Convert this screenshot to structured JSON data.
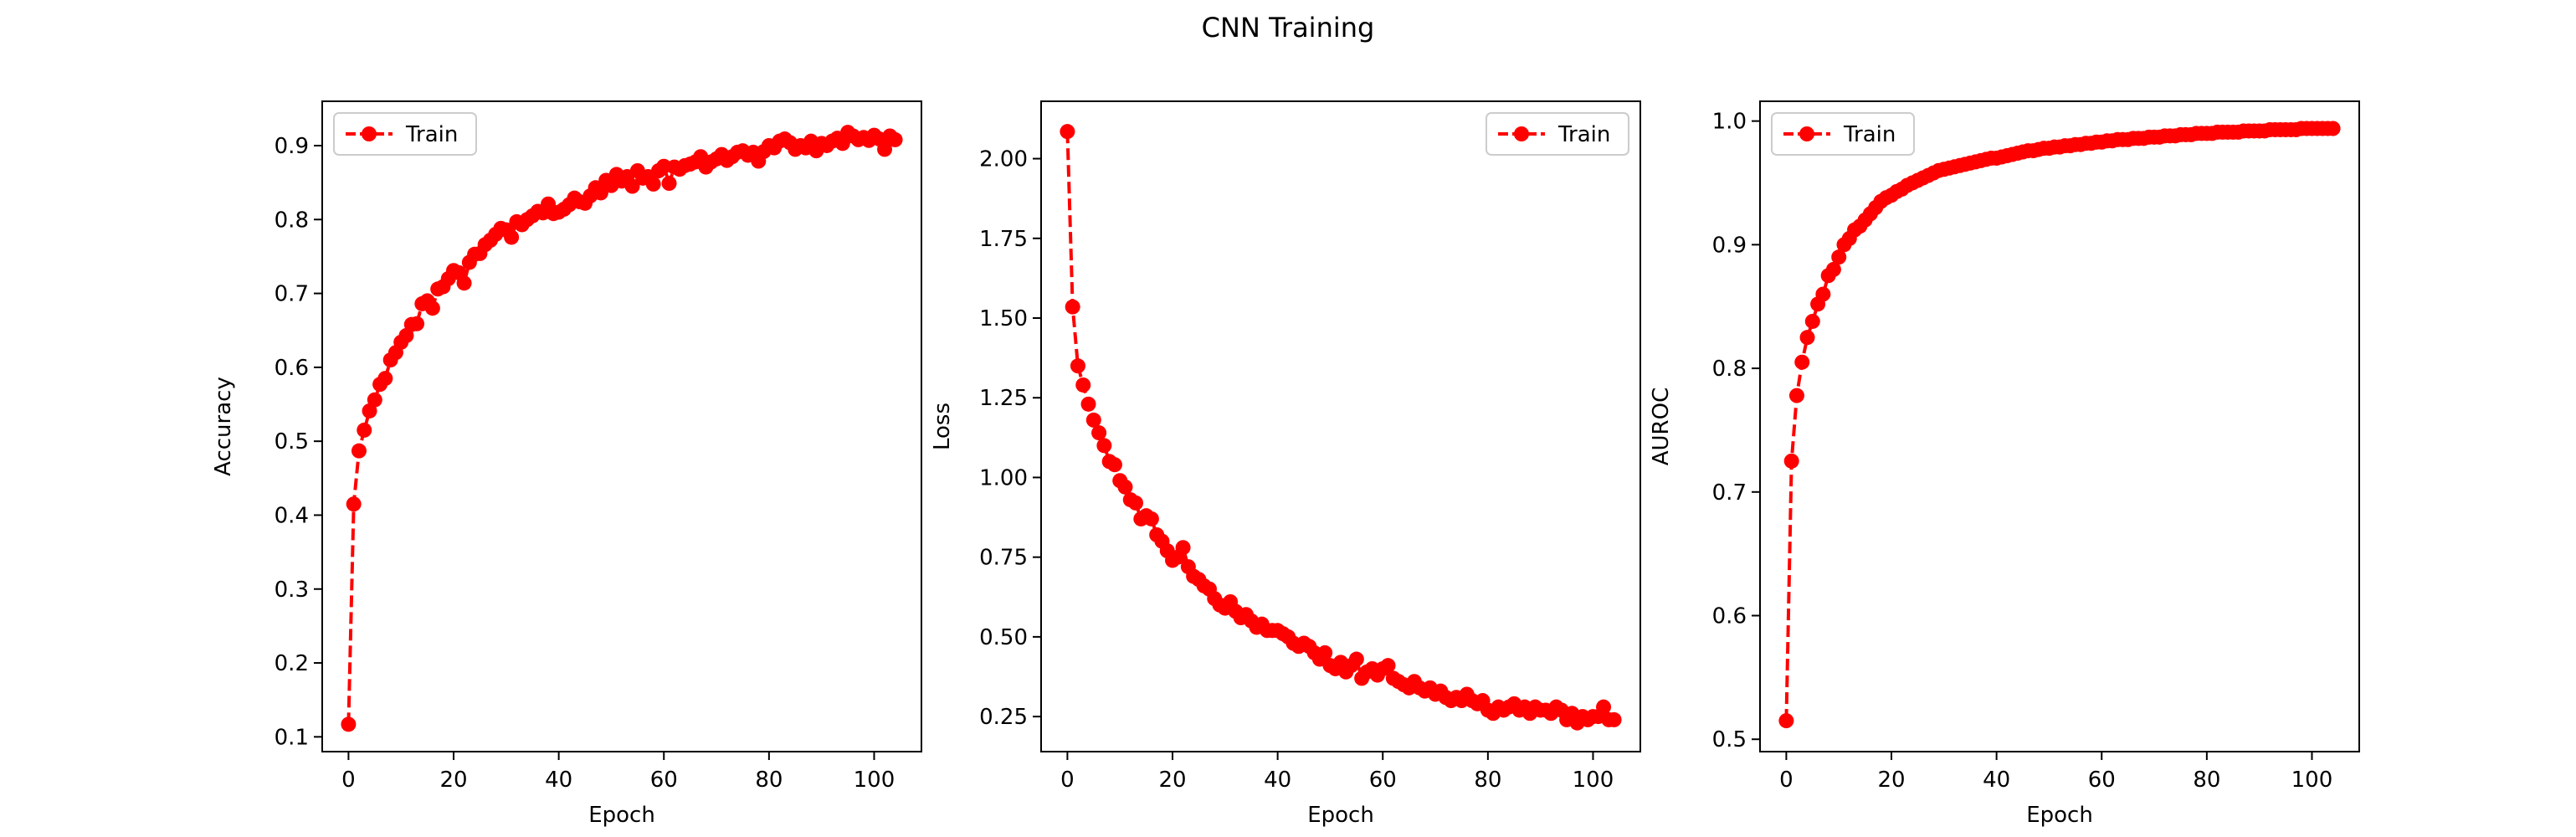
{
  "figure": {
    "title": "CNN Training",
    "background": "#ffffff",
    "series_color": "#ff0000"
  },
  "chart_data": [
    {
      "type": "line",
      "title": "",
      "xlabel": "Epoch",
      "ylabel": "Accuracy",
      "xlim": [
        -5,
        109
      ],
      "ylim": [
        0.08,
        0.96
      ],
      "xticks": [
        0,
        20,
        40,
        60,
        80,
        100
      ],
      "yticks": [
        0.1,
        0.2,
        0.3,
        0.4,
        0.5,
        0.6,
        0.7,
        0.8,
        0.9
      ],
      "grid": false,
      "legend_position": "top-left",
      "line_style": "dashed",
      "marker": "circle",
      "series": [
        {
          "name": "Train",
          "color": "#ff0000",
          "x": [
            0,
            1,
            2,
            3,
            4,
            5,
            6,
            7,
            8,
            9,
            10,
            11,
            12,
            13,
            14,
            15,
            16,
            17,
            18,
            19,
            20,
            21,
            22,
            23,
            24,
            25,
            26,
            27,
            28,
            29,
            30,
            31,
            32,
            33,
            34,
            35,
            36,
            37,
            38,
            39,
            40,
            41,
            42,
            43,
            44,
            45,
            46,
            47,
            48,
            49,
            50,
            51,
            52,
            53,
            54,
            55,
            56,
            57,
            58,
            59,
            60,
            61,
            62,
            63,
            64,
            65,
            66,
            67,
            68,
            69,
            70,
            71,
            72,
            73,
            74,
            75,
            76,
            77,
            78,
            79,
            80,
            81,
            82,
            83,
            84,
            85,
            86,
            87,
            88,
            89,
            90,
            91,
            92,
            93,
            94,
            95,
            96,
            97,
            98,
            99,
            100,
            101,
            102,
            103,
            104
          ],
          "values": [
            0.117,
            0.415,
            0.487,
            0.515,
            0.541,
            0.556,
            0.577,
            0.585,
            0.61,
            0.62,
            0.634,
            0.643,
            0.658,
            0.659,
            0.686,
            0.69,
            0.68,
            0.706,
            0.709,
            0.72,
            0.731,
            0.728,
            0.714,
            0.742,
            0.753,
            0.754,
            0.766,
            0.772,
            0.78,
            0.788,
            0.786,
            0.776,
            0.797,
            0.793,
            0.8,
            0.805,
            0.811,
            0.809,
            0.821,
            0.808,
            0.81,
            0.814,
            0.82,
            0.829,
            0.824,
            0.822,
            0.832,
            0.843,
            0.836,
            0.853,
            0.846,
            0.861,
            0.852,
            0.858,
            0.845,
            0.866,
            0.856,
            0.858,
            0.848,
            0.866,
            0.872,
            0.849,
            0.871,
            0.868,
            0.873,
            0.875,
            0.878,
            0.885,
            0.871,
            0.878,
            0.882,
            0.888,
            0.88,
            0.885,
            0.891,
            0.893,
            0.887,
            0.891,
            0.879,
            0.892,
            0.9,
            0.897,
            0.906,
            0.909,
            0.904,
            0.895,
            0.9,
            0.897,
            0.906,
            0.893,
            0.903,
            0.9,
            0.906,
            0.91,
            0.903,
            0.918,
            0.913,
            0.908,
            0.911,
            0.907,
            0.914,
            0.909,
            0.895,
            0.913,
            0.908
          ]
        }
      ]
    },
    {
      "type": "line",
      "title": "",
      "xlabel": "Epoch",
      "ylabel": "Loss",
      "xlim": [
        -5,
        109
      ],
      "ylim": [
        0.14,
        2.18
      ],
      "xticks": [
        0,
        20,
        40,
        60,
        80,
        100
      ],
      "yticks": [
        0.25,
        0.5,
        0.75,
        1.0,
        1.25,
        1.5,
        1.75,
        2.0
      ],
      "ytick_labels": [
        "0.25",
        "0.50",
        "0.75",
        "1.00",
        "1.25",
        "1.50",
        "1.75",
        "2.00"
      ],
      "grid": false,
      "legend_position": "top-right",
      "line_style": "dashed",
      "marker": "circle",
      "series": [
        {
          "name": "Train",
          "color": "#ff0000",
          "x": [
            0,
            1,
            2,
            3,
            4,
            5,
            6,
            7,
            8,
            9,
            10,
            11,
            12,
            13,
            14,
            15,
            16,
            17,
            18,
            19,
            20,
            21,
            22,
            23,
            24,
            25,
            26,
            27,
            28,
            29,
            30,
            31,
            32,
            33,
            34,
            35,
            36,
            37,
            38,
            39,
            40,
            41,
            42,
            43,
            44,
            45,
            46,
            47,
            48,
            49,
            50,
            51,
            52,
            53,
            54,
            55,
            56,
            57,
            58,
            59,
            60,
            61,
            62,
            63,
            64,
            65,
            66,
            67,
            68,
            69,
            70,
            71,
            72,
            73,
            74,
            75,
            76,
            77,
            78,
            79,
            80,
            81,
            82,
            83,
            84,
            85,
            86,
            87,
            88,
            89,
            90,
            91,
            92,
            93,
            94,
            95,
            96,
            97,
            98,
            99,
            100,
            101,
            102,
            103,
            104
          ],
          "values": [
            2.085,
            1.535,
            1.35,
            1.29,
            1.23,
            1.18,
            1.14,
            1.1,
            1.05,
            1.04,
            0.99,
            0.97,
            0.93,
            0.92,
            0.87,
            0.88,
            0.87,
            0.82,
            0.8,
            0.77,
            0.74,
            0.75,
            0.78,
            0.72,
            0.69,
            0.68,
            0.66,
            0.65,
            0.62,
            0.6,
            0.59,
            0.61,
            0.58,
            0.56,
            0.57,
            0.55,
            0.53,
            0.54,
            0.52,
            0.52,
            0.52,
            0.51,
            0.5,
            0.48,
            0.47,
            0.48,
            0.47,
            0.45,
            0.43,
            0.45,
            0.41,
            0.4,
            0.42,
            0.39,
            0.41,
            0.43,
            0.37,
            0.39,
            0.4,
            0.38,
            0.4,
            0.41,
            0.37,
            0.36,
            0.35,
            0.34,
            0.36,
            0.34,
            0.33,
            0.34,
            0.32,
            0.33,
            0.31,
            0.3,
            0.31,
            0.3,
            0.32,
            0.3,
            0.29,
            0.3,
            0.27,
            0.26,
            0.28,
            0.27,
            0.28,
            0.29,
            0.27,
            0.28,
            0.26,
            0.28,
            0.27,
            0.27,
            0.26,
            0.28,
            0.27,
            0.24,
            0.26,
            0.23,
            0.25,
            0.24,
            0.25,
            0.25,
            0.28,
            0.24,
            0.24
          ]
        }
      ]
    },
    {
      "type": "line",
      "title": "",
      "xlabel": "Epoch",
      "ylabel": "AUROC",
      "xlim": [
        -5,
        109
      ],
      "ylim": [
        0.49,
        1.016
      ],
      "xticks": [
        0,
        20,
        40,
        60,
        80,
        100
      ],
      "yticks": [
        0.5,
        0.6,
        0.7,
        0.8,
        0.9,
        1.0
      ],
      "grid": false,
      "legend_position": "top-left",
      "line_style": "dashed",
      "marker": "circle",
      "series": [
        {
          "name": "Train",
          "color": "#ff0000",
          "x": [
            0,
            1,
            2,
            3,
            4,
            5,
            6,
            7,
            8,
            9,
            10,
            11,
            12,
            13,
            14,
            15,
            16,
            17,
            18,
            19,
            20,
            21,
            22,
            23,
            24,
            25,
            26,
            27,
            28,
            29,
            30,
            31,
            32,
            33,
            34,
            35,
            36,
            37,
            38,
            39,
            40,
            41,
            42,
            43,
            44,
            45,
            46,
            47,
            48,
            49,
            50,
            51,
            52,
            53,
            54,
            55,
            56,
            57,
            58,
            59,
            60,
            61,
            62,
            63,
            64,
            65,
            66,
            67,
            68,
            69,
            70,
            71,
            72,
            73,
            74,
            75,
            76,
            77,
            78,
            79,
            80,
            81,
            82,
            83,
            84,
            85,
            86,
            87,
            88,
            89,
            90,
            91,
            92,
            93,
            94,
            95,
            96,
            97,
            98,
            99,
            100,
            101,
            102,
            103,
            104
          ],
          "values": [
            0.515,
            0.725,
            0.778,
            0.805,
            0.825,
            0.838,
            0.852,
            0.86,
            0.875,
            0.88,
            0.89,
            0.9,
            0.905,
            0.912,
            0.915,
            0.92,
            0.925,
            0.93,
            0.935,
            0.938,
            0.94,
            0.943,
            0.945,
            0.948,
            0.95,
            0.952,
            0.954,
            0.956,
            0.958,
            0.96,
            0.961,
            0.962,
            0.963,
            0.964,
            0.965,
            0.966,
            0.967,
            0.968,
            0.969,
            0.97,
            0.97,
            0.971,
            0.972,
            0.973,
            0.974,
            0.975,
            0.976,
            0.976,
            0.977,
            0.978,
            0.978,
            0.979,
            0.979,
            0.98,
            0.98,
            0.981,
            0.981,
            0.982,
            0.982,
            0.983,
            0.983,
            0.984,
            0.984,
            0.985,
            0.985,
            0.985,
            0.986,
            0.986,
            0.986,
            0.987,
            0.987,
            0.987,
            0.988,
            0.988,
            0.988,
            0.989,
            0.989,
            0.989,
            0.99,
            0.99,
            0.99,
            0.99,
            0.991,
            0.991,
            0.991,
            0.991,
            0.991,
            0.992,
            0.992,
            0.992,
            0.992,
            0.992,
            0.993,
            0.993,
            0.993,
            0.993,
            0.993,
            0.993,
            0.994,
            0.994,
            0.994,
            0.994,
            0.994,
            0.994,
            0.994
          ]
        }
      ]
    }
  ]
}
